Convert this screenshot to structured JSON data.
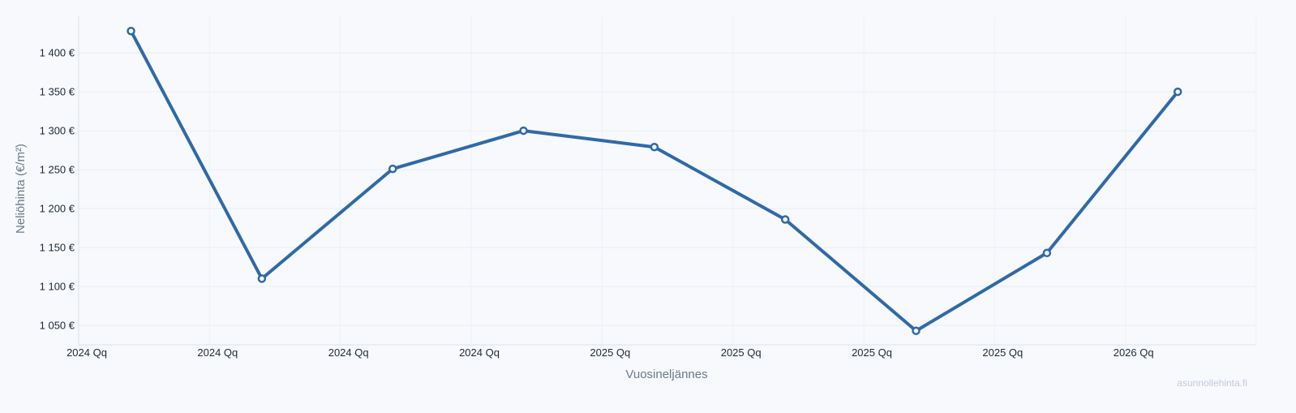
{
  "chart_data": {
    "type": "line",
    "title": "",
    "xlabel": "Vuosineljännes",
    "ylabel": "Neliöhinta (€/m²)",
    "x_ticks": [
      "2024 Qq",
      "2024 Qq",
      "2024 Qq",
      "2024 Qq",
      "2025 Qq",
      "2025 Qq",
      "2025 Qq",
      "2025 Qq",
      "2026 Qq"
    ],
    "y_ticks": [
      {
        "value": 1050,
        "label": "1 050 €"
      },
      {
        "value": 1100,
        "label": "1 100 €"
      },
      {
        "value": 1150,
        "label": "1 150 €"
      },
      {
        "value": 1200,
        "label": "1 200 €"
      },
      {
        "value": 1250,
        "label": "1 250 €"
      },
      {
        "value": 1300,
        "label": "1 300 €"
      },
      {
        "value": 1350,
        "label": "1 350 €"
      },
      {
        "value": 1400,
        "label": "1 400 €"
      }
    ],
    "ylim": [
      1025,
      1447
    ],
    "grid": true,
    "series": [
      {
        "color": "#2f6aa8",
        "values": [
          1428,
          1110,
          1251,
          1300,
          1279,
          1186,
          1043,
          1143,
          1350
        ]
      }
    ]
  },
  "watermark": "asunnollehinta.fi"
}
